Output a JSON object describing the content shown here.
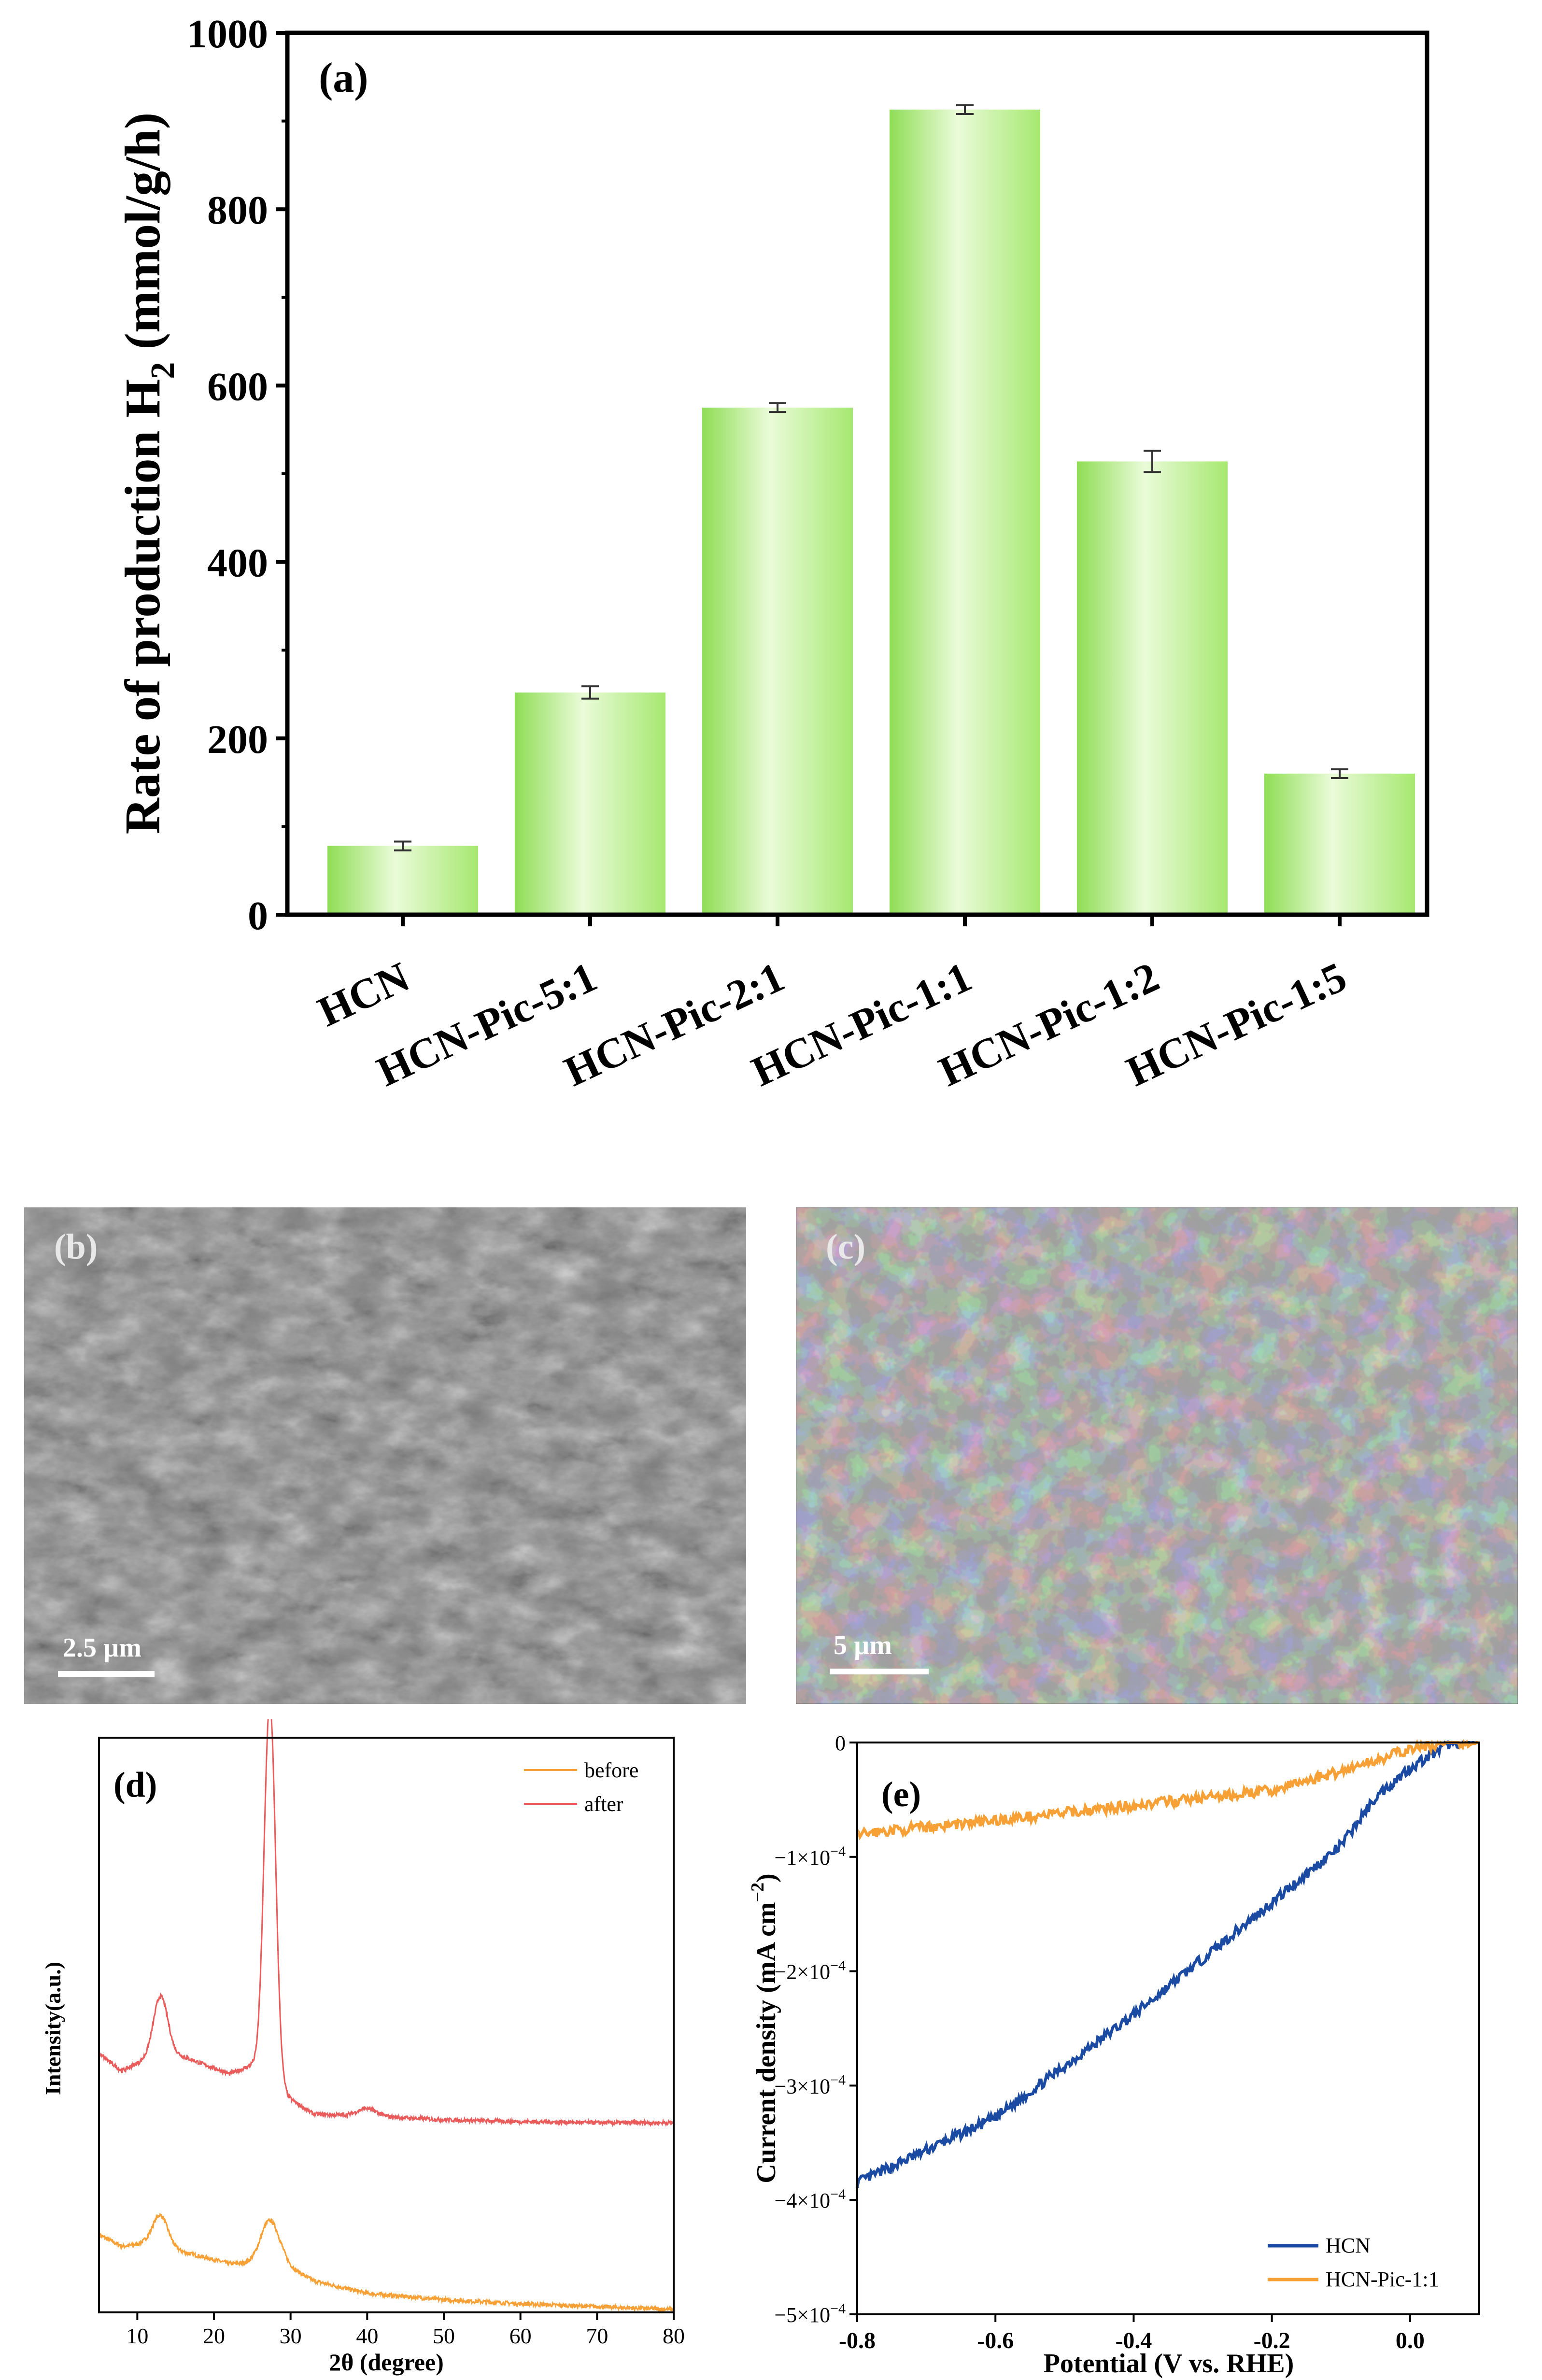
{
  "colors": {
    "bar_light": "#eafbd9",
    "bar_mid": "#b9f08a",
    "bar_dark": "#8fdd55",
    "line_before": "#f7a035",
    "line_after": "#ea5b5b",
    "line_hcn": "#1b4aa3",
    "line_hcnpic": "#f7a035",
    "sem_b": "#8a8a8a",
    "sem_c": "#6a6a6a"
  },
  "chart_data": [
    {
      "panel": "(a)",
      "type": "bar",
      "ylabel_main": "Rate of production H",
      "ylabel_sub": "2",
      "ylabel_unit": " (mmol/g/h)",
      "ylim": [
        0,
        1000
      ],
      "yticks": [
        0,
        200,
        400,
        600,
        800,
        1000
      ],
      "categories": [
        "HCN",
        "HCN-Pic-5:1",
        "HCN-Pic-2:1",
        "HCN-Pic-1:1",
        "HCN-Pic-1:2",
        "HCN-Pic-1:5"
      ],
      "values": [
        78,
        252,
        575,
        913,
        514,
        160
      ],
      "errors": [
        5,
        7,
        5,
        5,
        12,
        5
      ]
    },
    {
      "panel": "(d)",
      "type": "line",
      "xlabel": "2θ (degree)",
      "ylabel": "Intensity(a.u.)",
      "xlim": [
        5,
        80
      ],
      "xticks": [
        10,
        20,
        30,
        40,
        50,
        60,
        70,
        80
      ],
      "ylim": [
        0,
        100
      ],
      "legend_position": "top-right",
      "series": [
        {
          "name": "before",
          "peaks": [
            [
              13,
              5.5,
              1.0
            ],
            [
              27.3,
              7.5,
              1.2
            ]
          ],
          "baseline_points": [
            [
              5,
              13.5
            ],
            [
              8,
              11.5
            ],
            [
              11,
              12
            ],
            [
              16,
              10.5
            ],
            [
              22,
              8.5
            ],
            [
              25,
              8.5
            ],
            [
              29,
              8.5
            ],
            [
              33,
              5.5
            ],
            [
              40,
              3.3
            ],
            [
              50,
              2.2
            ],
            [
              60,
              1.5
            ],
            [
              70,
              1
            ],
            [
              80,
              0.5
            ]
          ]
        },
        {
          "name": "after",
          "peaks": [
            [
              13,
              10,
              0.9
            ],
            [
              27.3,
              66,
              0.75
            ],
            [
              40,
              1.3,
              1.2
            ]
          ],
          "baseline_points": [
            [
              5,
              45
            ],
            [
              8,
              42
            ],
            [
              11,
              44
            ],
            [
              14,
              45.5
            ],
            [
              18,
              43.5
            ],
            [
              22,
              41.5
            ],
            [
              25,
              43
            ],
            [
              29,
              38
            ],
            [
              33,
              34.5
            ],
            [
              40,
              34.2
            ],
            [
              50,
              33.5
            ],
            [
              60,
              33.2
            ],
            [
              70,
              33
            ],
            [
              80,
              33
            ]
          ]
        }
      ]
    },
    {
      "panel": "(e)",
      "type": "line",
      "xlabel": "Potential (V vs. RHE)",
      "ylabel_main": "Current density (mA cm",
      "ylabel_sup": "−2",
      "ylabel_end": ")",
      "xlim": [
        -0.8,
        0.1
      ],
      "xticks": [
        -0.8,
        -0.6,
        -0.4,
        -0.2,
        0.0
      ],
      "xtick_labels": [
        "-0.8",
        "-0.6",
        "-0.4",
        "-0.2",
        "0.0"
      ],
      "ylim": [
        -0.0005,
        0
      ],
      "yticks": [
        0,
        -0.0001,
        -0.0002,
        -0.0003,
        -0.0004,
        -0.0005
      ],
      "ytick_labels": [
        "0",
        "−1×10",
        "−2×10",
        "−3×10",
        "−4×10",
        "−5×10"
      ],
      "ytick_exp": [
        "",
        "−4",
        "−4",
        "−4",
        "−4",
        "−4"
      ],
      "legend_position": "bottom-right",
      "series": [
        {
          "name": "HCN",
          "points": [
            [
              -0.8,
              -0.000385
            ],
            [
              -0.6,
              -0.000328
            ],
            [
              -0.4,
              -0.000238
            ],
            [
              -0.2,
              -0.00014
            ],
            [
              -0.1,
              -9e-05
            ],
            [
              -0.05,
              -4.8e-05
            ],
            [
              0.0,
              -2.2e-05
            ],
            [
              0.06,
              0.0
            ],
            [
              0.1,
              0.0
            ]
          ]
        },
        {
          "name": "HCN-Pic-1:1",
          "points": [
            [
              -0.8,
              -8e-05
            ],
            [
              -0.6,
              -6.8e-05
            ],
            [
              -0.4,
              -5.5e-05
            ],
            [
              -0.2,
              -4.2e-05
            ],
            [
              -0.1,
              -2.5e-05
            ],
            [
              0.0,
              -6e-06
            ],
            [
              0.06,
              0.0
            ],
            [
              0.1,
              0.0
            ]
          ]
        }
      ]
    }
  ],
  "sem": {
    "b": {
      "label": "(b)",
      "scale": "2.5 µm"
    },
    "c": {
      "label": "(c)",
      "scale": "5 µm"
    }
  }
}
